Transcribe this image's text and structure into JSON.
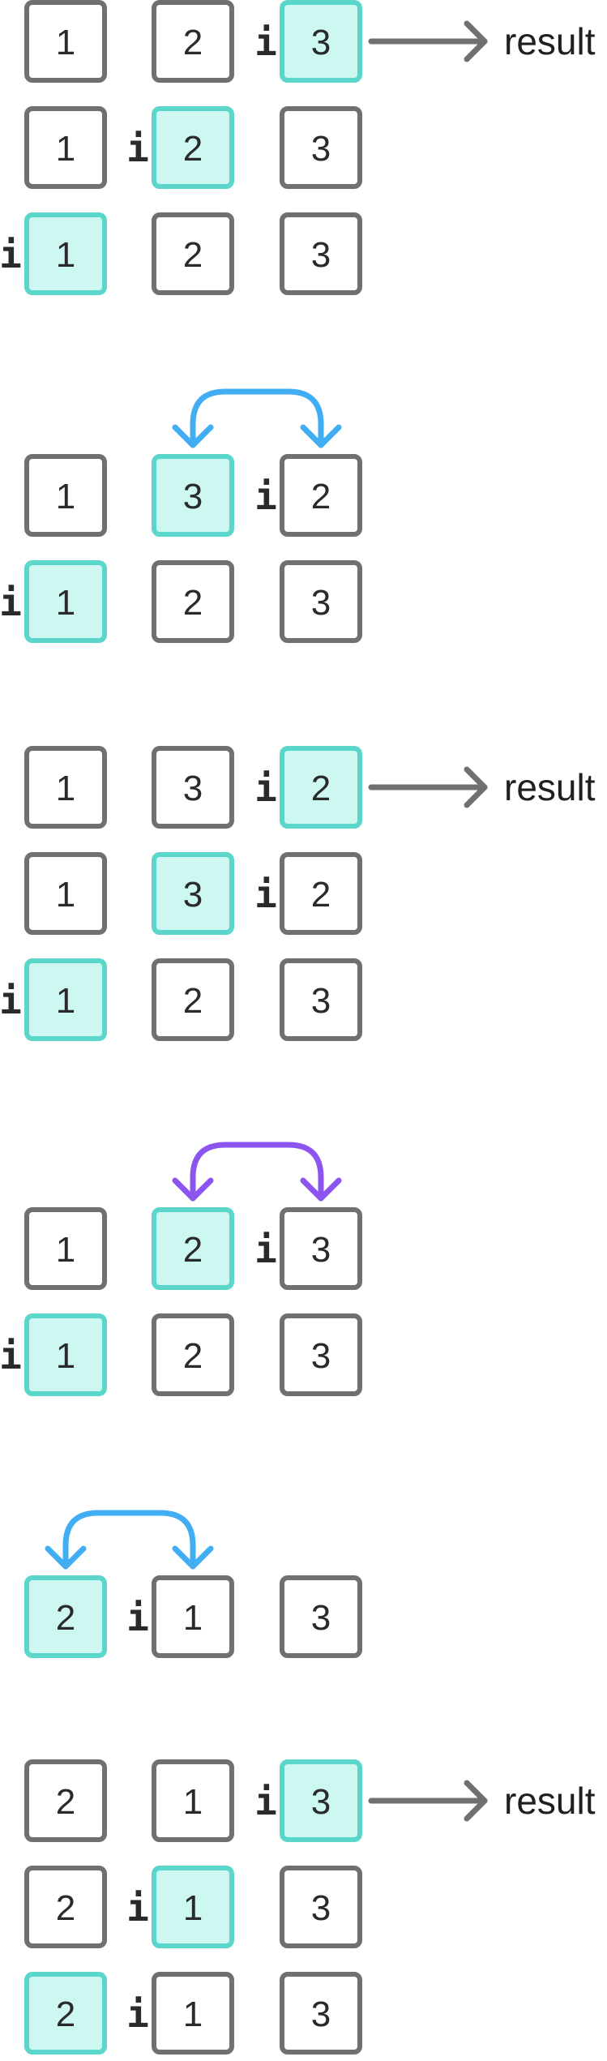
{
  "labels": {
    "pointer": "i",
    "result": "result"
  },
  "colors": {
    "box_stroke": "#707070",
    "box_fill": "#ffffff",
    "hl_fill": "#cdf7f1",
    "hl_stroke": "#5ad6ca",
    "blue": "#41adf3",
    "purple": "#8c55f0",
    "result_arrow": "#707070"
  },
  "sections": [
    {
      "rows": [
        {
          "values": [
            "1",
            "2",
            "3"
          ],
          "highlight": 2,
          "pointer": 2,
          "result": true
        },
        {
          "values": [
            "1",
            "2",
            "3"
          ],
          "highlight": 1,
          "pointer": 1,
          "result": false
        },
        {
          "values": [
            "1",
            "2",
            "3"
          ],
          "highlight": 0,
          "pointer": 0,
          "result": false
        }
      ]
    },
    {
      "swap": {
        "from": 1,
        "to": 2,
        "color": "blue"
      },
      "rows": [
        {
          "values": [
            "1",
            "3",
            "2"
          ],
          "highlight": 1,
          "pointer": 2,
          "result": false
        },
        {
          "values": [
            "1",
            "2",
            "3"
          ],
          "highlight": 0,
          "pointer": 0,
          "result": false
        }
      ]
    },
    {
      "rows": [
        {
          "values": [
            "1",
            "3",
            "2"
          ],
          "highlight": 2,
          "pointer": 2,
          "result": true
        },
        {
          "values": [
            "1",
            "3",
            "2"
          ],
          "highlight": 1,
          "pointer": 2,
          "result": false
        },
        {
          "values": [
            "1",
            "2",
            "3"
          ],
          "highlight": 0,
          "pointer": 0,
          "result": false
        }
      ]
    },
    {
      "swap": {
        "from": 1,
        "to": 2,
        "color": "purple"
      },
      "rows": [
        {
          "values": [
            "1",
            "2",
            "3"
          ],
          "highlight": 1,
          "pointer": 2,
          "result": false
        },
        {
          "values": [
            "1",
            "2",
            "3"
          ],
          "highlight": 0,
          "pointer": 0,
          "result": false
        }
      ]
    },
    {
      "swap": {
        "from": 0,
        "to": 1,
        "color": "blue"
      },
      "rows": [
        {
          "values": [
            "2",
            "1",
            "3"
          ],
          "highlight": 0,
          "pointer": 1,
          "result": false
        }
      ]
    },
    {
      "rows": [
        {
          "values": [
            "2",
            "1",
            "3"
          ],
          "highlight": 2,
          "pointer": 2,
          "result": true
        },
        {
          "values": [
            "2",
            "1",
            "3"
          ],
          "highlight": 1,
          "pointer": 1,
          "result": false
        },
        {
          "values": [
            "2",
            "1",
            "3"
          ],
          "highlight": 0,
          "pointer": 1,
          "result": false
        }
      ]
    }
  ]
}
